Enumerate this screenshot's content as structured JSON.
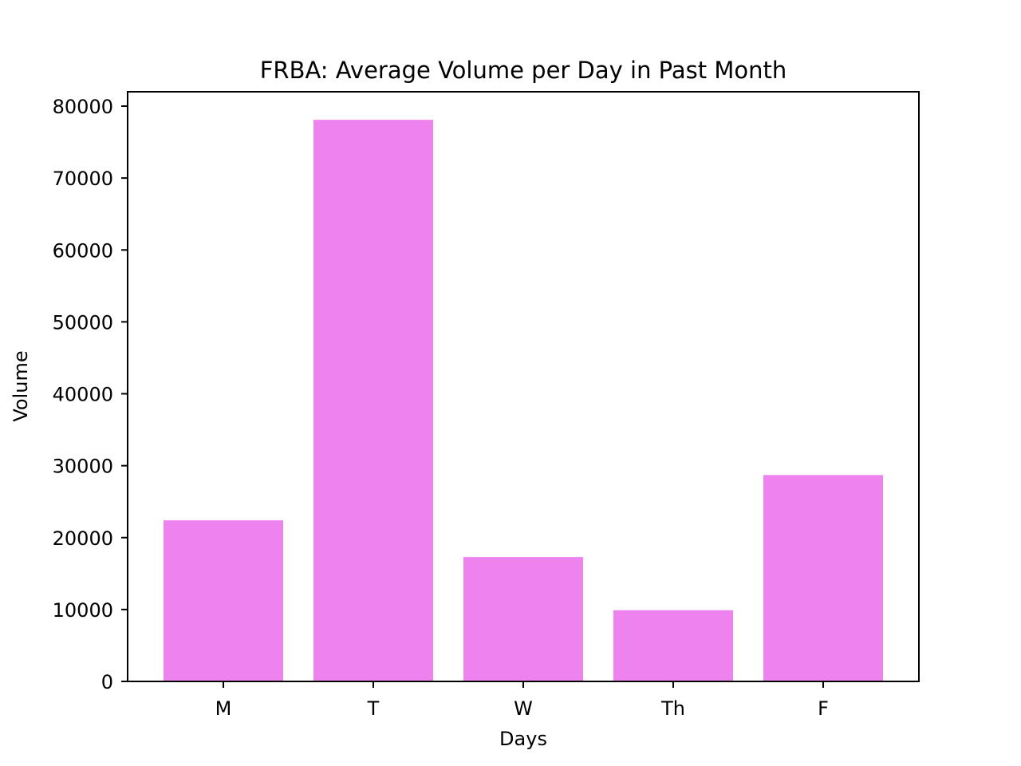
{
  "chart_data": {
    "type": "bar",
    "title": "FRBA: Average Volume per Day in Past Month",
    "xlabel": "Days",
    "ylabel": "Volume",
    "categories": [
      "M",
      "T",
      "W",
      "Th",
      "F"
    ],
    "values": [
      22400,
      78100,
      17300,
      9900,
      28700
    ],
    "ylim": [
      0,
      82000
    ],
    "yticks": [
      0,
      10000,
      20000,
      30000,
      40000,
      50000,
      60000,
      70000,
      80000
    ],
    "ytick_labels": [
      "0",
      "10000",
      "20000",
      "30000",
      "40000",
      "50000",
      "60000",
      "70000",
      "80000"
    ],
    "grid": false,
    "legend": "none",
    "colors": {
      "bar": "#ee82ee",
      "axes": "#000000",
      "background": "#ffffff"
    }
  }
}
